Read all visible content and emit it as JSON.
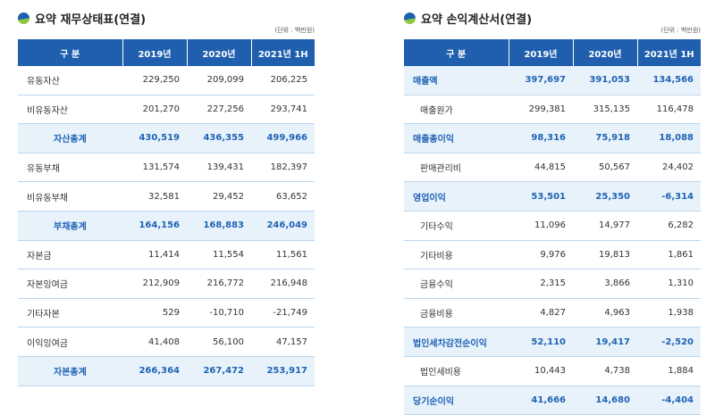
{
  "balance": {
    "title": "요약 재무상태표(연결)",
    "unit": "(단위 : 백만원)",
    "headers": [
      "구 분",
      "2019년",
      "2020년",
      "2021년 1H"
    ],
    "rows": [
      {
        "label": "유동자산",
        "values": [
          "229,250",
          "209,099",
          "206,225"
        ],
        "hl": false
      },
      {
        "label": "비유동자산",
        "values": [
          "201,270",
          "227,256",
          "293,741"
        ],
        "hl": false
      },
      {
        "label": "자산총계",
        "values": [
          "430,519",
          "436,355",
          "499,966"
        ],
        "hl": true
      },
      {
        "label": "유동부채",
        "values": [
          "131,574",
          "139,431",
          "182,397"
        ],
        "hl": false
      },
      {
        "label": "비유동부채",
        "values": [
          "32,581",
          "29,452",
          "63,652"
        ],
        "hl": false
      },
      {
        "label": "부채총계",
        "values": [
          "164,156",
          "168,883",
          "246,049"
        ],
        "hl": true
      },
      {
        "label": "자본금",
        "values": [
          "11,414",
          "11,554",
          "11,561"
        ],
        "hl": false
      },
      {
        "label": "자본잉여금",
        "values": [
          "212,909",
          "216,772",
          "216,948"
        ],
        "hl": false
      },
      {
        "label": "기타자본",
        "values": [
          "529",
          "-10,710",
          "-21,749"
        ],
        "hl": false
      },
      {
        "label": "이익잉여금",
        "values": [
          "41,408",
          "56,100",
          "47,157"
        ],
        "hl": false
      },
      {
        "label": "자본총계",
        "values": [
          "266,364",
          "267,472",
          "253,917"
        ],
        "hl": true
      }
    ]
  },
  "income": {
    "title": "요약 손익계산서(연결)",
    "unit": "(단위 : 백만원)",
    "headers": [
      "구 분",
      "2019년",
      "2020년",
      "2021년 1H"
    ],
    "rows": [
      {
        "label": "매출액",
        "values": [
          "397,697",
          "391,053",
          "134,566"
        ],
        "hl": true
      },
      {
        "label": "매출원가",
        "values": [
          "299,381",
          "315,135",
          "116,478"
        ],
        "hl": false
      },
      {
        "label": "매출총이익",
        "values": [
          "98,316",
          "75,918",
          "18,088"
        ],
        "hl": true
      },
      {
        "label": "판매관리비",
        "values": [
          "44,815",
          "50,567",
          "24,402"
        ],
        "hl": false
      },
      {
        "label": "영업이익",
        "values": [
          "53,501",
          "25,350",
          "-6,314"
        ],
        "hl": true
      },
      {
        "label": "기타수익",
        "values": [
          "11,096",
          "14,977",
          "6,282"
        ],
        "hl": false
      },
      {
        "label": "기타비용",
        "values": [
          "9,976",
          "19,813",
          "1,861"
        ],
        "hl": false
      },
      {
        "label": "금융수익",
        "values": [
          "2,315",
          "3,866",
          "1,310"
        ],
        "hl": false
      },
      {
        "label": "금융비용",
        "values": [
          "4,827",
          "4,963",
          "1,938"
        ],
        "hl": false
      },
      {
        "label": "법인세차감전순이익",
        "values": [
          "52,110",
          "19,417",
          "-2,520"
        ],
        "hl": true
      },
      {
        "label": "법인세비용",
        "values": [
          "10,443",
          "4,738",
          "1,884"
        ],
        "hl": false
      },
      {
        "label": "당기순이익",
        "values": [
          "41,666",
          "14,680",
          "-4,404"
        ],
        "hl": true
      }
    ]
  },
  "colors": {
    "header": "#1f5fae",
    "highlight_bg": "#e8f2fb",
    "highlight_text": "#1f63b4"
  }
}
